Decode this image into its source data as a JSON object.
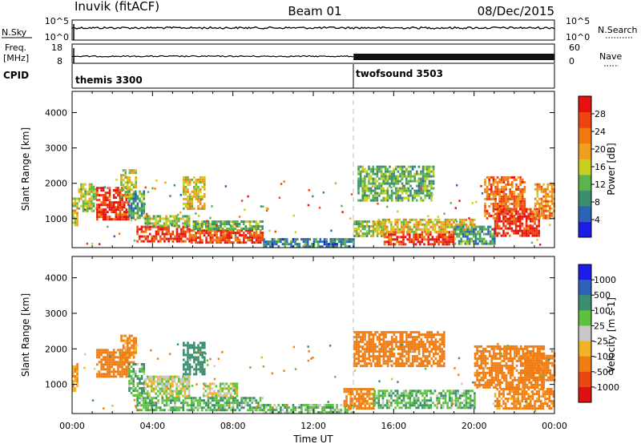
{
  "header": {
    "title": "Inuvik (fitACF)",
    "beam": "Beam 01",
    "date": "08/Dec/2015"
  },
  "summary": {
    "nsky_label": "N.Sky",
    "nsky_ticks": [
      "10^5",
      "10^0"
    ],
    "nsearch_label": "N.Search",
    "nsearch_ticks": [
      "10^5",
      "10^0"
    ],
    "freq_label_line1": "Freq.",
    "freq_label_line2": "[MHz]",
    "freq_ticks": [
      "18",
      "8"
    ],
    "nave_label": "Nave",
    "nave_ticks": [
      "60",
      "0"
    ],
    "cpid_label": "CPID",
    "programs": [
      {
        "name": "themis 3300",
        "start_hour": 0
      },
      {
        "name": "twofsound 3503",
        "start_hour": 14
      }
    ]
  },
  "chart_data": [
    {
      "type": "heatmap",
      "quantity": "Power",
      "ylabel": "Slant Range [km]",
      "ylim": [
        180,
        4600
      ],
      "yticks": [
        1000,
        2000,
        3000,
        4000
      ],
      "xlim": [
        0,
        24
      ],
      "colorbar": {
        "label": "Power [dB]",
        "ticks": [
          4,
          8,
          12,
          16,
          20,
          24,
          28
        ],
        "range": [
          0,
          32
        ],
        "colors": [
          "#1c1ce8",
          "#2c63b8",
          "#3a8f6e",
          "#5db44a",
          "#c8d020",
          "#f0a020",
          "#f07a10",
          "#ee4510",
          "#e81010"
        ]
      },
      "regions": [
        {
          "h0": 0.0,
          "h1": 0.3,
          "r0": 800,
          "r1": 1600,
          "v": 18
        },
        {
          "h0": 0.3,
          "h1": 1.2,
          "r0": 1200,
          "r1": 2000,
          "v": 14
        },
        {
          "h0": 1.2,
          "h1": 2.8,
          "r0": 1000,
          "r1": 1900,
          "v": 29
        },
        {
          "h0": 2.4,
          "h1": 3.2,
          "r0": 1600,
          "r1": 2400,
          "v": 16
        },
        {
          "h0": 2.8,
          "h1": 3.6,
          "r0": 1000,
          "r1": 1800,
          "v": 10
        },
        {
          "h0": 3.2,
          "h1": 5.8,
          "r0": 350,
          "r1": 800,
          "v": 28
        },
        {
          "h0": 3.6,
          "h1": 5.8,
          "r0": 800,
          "r1": 1100,
          "v": 14
        },
        {
          "h0": 5.5,
          "h1": 6.6,
          "r0": 1300,
          "r1": 2200,
          "v": 18
        },
        {
          "h0": 5.8,
          "h1": 9.5,
          "r0": 300,
          "r1": 700,
          "v": 27
        },
        {
          "h0": 6.0,
          "h1": 9.5,
          "r0": 700,
          "r1": 950,
          "v": 12
        },
        {
          "h0": 9.5,
          "h1": 14.0,
          "r0": 200,
          "r1": 450,
          "v": 8
        },
        {
          "h0": 14.0,
          "h1": 15.6,
          "r0": 500,
          "r1": 950,
          "v": 14
        },
        {
          "h0": 14.2,
          "h1": 18.0,
          "r0": 1500,
          "r1": 2500,
          "v": 12
        },
        {
          "h0": 15.5,
          "h1": 19.0,
          "r0": 280,
          "r1": 650,
          "v": 28
        },
        {
          "h0": 15.0,
          "h1": 20.0,
          "r0": 650,
          "r1": 1000,
          "v": 18
        },
        {
          "h0": 19.0,
          "h1": 21.0,
          "r0": 300,
          "r1": 800,
          "v": 10
        },
        {
          "h0": 20.5,
          "h1": 22.5,
          "r0": 1000,
          "r1": 2200,
          "v": 24
        },
        {
          "h0": 21.0,
          "h1": 23.2,
          "r0": 500,
          "r1": 1300,
          "v": 29
        },
        {
          "h0": 23.0,
          "h1": 24.0,
          "r0": 1000,
          "r1": 2000,
          "v": 22
        }
      ]
    },
    {
      "type": "heatmap",
      "quantity": "Velocity",
      "ylabel": "Slant Range [km]",
      "ylim": [
        180,
        4600
      ],
      "yticks": [
        1000,
        2000,
        3000,
        4000
      ],
      "xlim": [
        0,
        24
      ],
      "colorbar": {
        "label": "Velocity [m s-1]",
        "ticks": [
          "1000",
          "500",
          "100",
          "25",
          "-25",
          "-100",
          "-500",
          "-1000"
        ],
        "colors": [
          "#1c1ce8",
          "#2c63b8",
          "#3a8f6e",
          "#5cc23c",
          "#c8c8c8",
          "#f2b324",
          "#f07d14",
          "#ea4812",
          "#e01010"
        ]
      },
      "regions": [
        {
          "h0": 0.0,
          "h1": 0.3,
          "r0": 800,
          "r1": 1600,
          "v": -100
        },
        {
          "h0": 1.2,
          "h1": 2.8,
          "r0": 1200,
          "r1": 2000,
          "v": -200
        },
        {
          "h0": 2.4,
          "h1": 3.2,
          "r0": 1600,
          "r1": 2400,
          "v": -150
        },
        {
          "h0": 2.8,
          "h1": 3.6,
          "r0": 700,
          "r1": 1600,
          "v": 80
        },
        {
          "h0": 3.6,
          "h1": 5.8,
          "r0": 650,
          "r1": 1250,
          "v": 0
        },
        {
          "h0": 5.5,
          "h1": 6.6,
          "r0": 1300,
          "r1": 2200,
          "v": 200
        },
        {
          "h0": 6.5,
          "h1": 8.2,
          "r0": 700,
          "r1": 1050,
          "v": 0
        },
        {
          "h0": 3.2,
          "h1": 9.5,
          "r0": 250,
          "r1": 650,
          "v": 80
        },
        {
          "h0": 9.5,
          "h1": 14.0,
          "r0": 200,
          "r1": 450,
          "v": 60
        },
        {
          "h0": 13.5,
          "h1": 15.0,
          "r0": 300,
          "r1": 900,
          "v": -150
        },
        {
          "h0": 14.0,
          "h1": 18.5,
          "r0": 1500,
          "r1": 2500,
          "v": -300
        },
        {
          "h0": 15.0,
          "h1": 20.0,
          "r0": 350,
          "r1": 850,
          "v": 80
        },
        {
          "h0": 20.0,
          "h1": 23.5,
          "r0": 900,
          "r1": 2100,
          "v": -200
        },
        {
          "h0": 21.0,
          "h1": 24.0,
          "r0": 350,
          "r1": 900,
          "v": -150
        },
        {
          "h0": 22.5,
          "h1": 24.0,
          "r0": 1100,
          "r1": 1900,
          "v": -300
        }
      ]
    }
  ],
  "xaxis": {
    "label": "Time UT",
    "ticks": [
      "00:00",
      "04:00",
      "08:00",
      "12:00",
      "16:00",
      "20:00",
      "00:00"
    ]
  }
}
